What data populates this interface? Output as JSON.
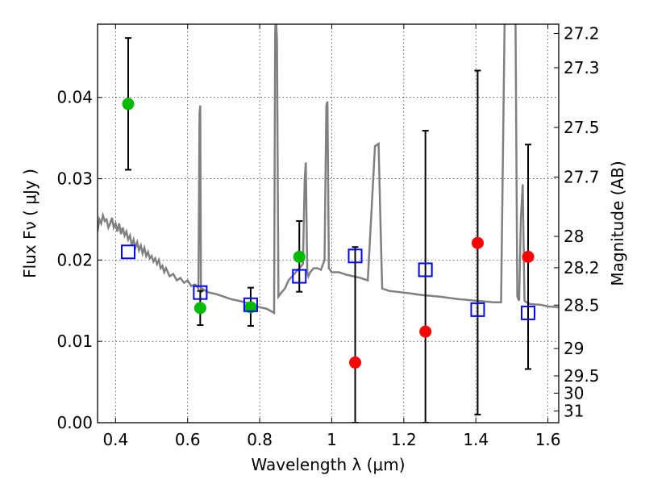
{
  "chart_data": {
    "type": "scatter",
    "xlabel": "Wavelength  λ (μm)",
    "ylabel": "Flux  Fν  ( μJy )",
    "y2label": "Magnitude (AB)",
    "xlim": [
      0.35,
      1.63
    ],
    "ylim": [
      0.0,
      0.049
    ],
    "grid": true,
    "x_ticks": [
      {
        "v": 0.4,
        "label": "0.4"
      },
      {
        "v": 0.6,
        "label": "0.6"
      },
      {
        "v": 0.8,
        "label": "0.8"
      },
      {
        "v": 1.0,
        "label": "1"
      },
      {
        "v": 1.2,
        "label": "1.2"
      },
      {
        "v": 1.4,
        "label": "1.4"
      },
      {
        "v": 1.6,
        "label": "1.6"
      }
    ],
    "y_ticks": [
      {
        "v": 0.0,
        "label": "0.00"
      },
      {
        "v": 0.01,
        "label": "0.01"
      },
      {
        "v": 0.02,
        "label": "0.02"
      },
      {
        "v": 0.03,
        "label": "0.03"
      },
      {
        "v": 0.04,
        "label": "0.04"
      }
    ],
    "y2_ticks": [
      {
        "v": 27.2,
        "label": "27.2"
      },
      {
        "v": 27.3,
        "label": "27.3"
      },
      {
        "v": 27.5,
        "label": "27.5"
      },
      {
        "v": 27.7,
        "label": "27.7"
      },
      {
        "v": 28.0,
        "label": "28"
      },
      {
        "v": 28.2,
        "label": "28.2"
      },
      {
        "v": 28.5,
        "label": "28.5"
      },
      {
        "v": 29.0,
        "label": "29"
      },
      {
        "v": 29.5,
        "label": "29.5"
      },
      {
        "v": 30.0,
        "label": "30"
      },
      {
        "v": 31.0,
        "label": "31"
      }
    ],
    "model_spectrum": {
      "color": "#808080",
      "x": [
        0.35,
        0.355,
        0.36,
        0.365,
        0.37,
        0.375,
        0.38,
        0.385,
        0.39,
        0.395,
        0.4,
        0.405,
        0.41,
        0.415,
        0.42,
        0.425,
        0.43,
        0.435,
        0.44,
        0.445,
        0.45,
        0.455,
        0.46,
        0.465,
        0.47,
        0.475,
        0.48,
        0.485,
        0.49,
        0.495,
        0.5,
        0.505,
        0.51,
        0.515,
        0.52,
        0.525,
        0.53,
        0.535,
        0.54,
        0.55,
        0.56,
        0.57,
        0.58,
        0.59,
        0.6,
        0.61,
        0.62,
        0.625,
        0.63,
        0.633,
        0.635,
        0.637,
        0.64,
        0.65,
        0.66,
        0.68,
        0.7,
        0.72,
        0.74,
        0.76,
        0.78,
        0.8,
        0.82,
        0.84,
        0.843,
        0.845,
        0.848,
        0.852,
        0.86,
        0.87,
        0.88,
        0.89,
        0.9,
        0.91,
        0.92,
        0.925,
        0.928,
        0.932,
        0.935,
        0.94,
        0.95,
        0.96,
        0.97,
        0.98,
        0.985,
        0.988,
        0.992,
        1.0,
        1.02,
        1.04,
        1.06,
        1.08,
        1.1,
        1.12,
        1.13,
        1.135,
        1.14,
        1.16,
        1.2,
        1.25,
        1.3,
        1.35,
        1.4,
        1.45,
        1.47,
        1.48,
        1.49,
        1.5,
        1.505,
        1.51,
        1.515,
        1.52,
        1.525,
        1.53,
        1.535,
        1.54,
        1.55,
        1.58,
        1.6,
        1.63
      ],
      "y": [
        0.0235,
        0.025,
        0.0245,
        0.0255,
        0.0248,
        0.025,
        0.024,
        0.0245,
        0.0252,
        0.024,
        0.0245,
        0.0235,
        0.0245,
        0.0232,
        0.024,
        0.023,
        0.0235,
        0.0225,
        0.023,
        0.0218,
        0.0225,
        0.0215,
        0.0222,
        0.0212,
        0.0218,
        0.0208,
        0.0215,
        0.0205,
        0.021,
        0.0202,
        0.0205,
        0.0198,
        0.0202,
        0.0195,
        0.02,
        0.019,
        0.0193,
        0.0185,
        0.019,
        0.018,
        0.0183,
        0.0175,
        0.0178,
        0.0172,
        0.0175,
        0.0168,
        0.017,
        0.0168,
        0.0165,
        0.038,
        0.039,
        0.016,
        0.0165,
        0.0162,
        0.016,
        0.0158,
        0.0155,
        0.0152,
        0.015,
        0.0148,
        0.0145,
        0.0142,
        0.014,
        0.0135,
        0.048,
        0.05,
        0.047,
        0.0155,
        0.016,
        0.0165,
        0.0175,
        0.018,
        0.0185,
        0.019,
        0.0195,
        0.03,
        0.032,
        0.0185,
        0.018,
        0.0185,
        0.019,
        0.019,
        0.0188,
        0.02,
        0.039,
        0.0395,
        0.019,
        0.0185,
        0.0185,
        0.0182,
        0.018,
        0.0178,
        0.0175,
        0.034,
        0.0343,
        0.025,
        0.0165,
        0.0162,
        0.016,
        0.0157,
        0.0155,
        0.0152,
        0.015,
        0.0148,
        0.0148,
        0.05,
        0.05,
        0.05,
        0.05,
        0.05,
        0.0155,
        0.015,
        0.0252,
        0.0293,
        0.015,
        0.0148,
        0.0146,
        0.0145,
        0.0143,
        0.0142
      ]
    },
    "series": [
      {
        "color": "#00bb00",
        "marker": "circle",
        "points": [
          {
            "x": 0.435,
            "y": 0.0392,
            "err_lo": 0.0311,
            "err_hi": 0.0473
          },
          {
            "x": 0.635,
            "y": 0.0141,
            "err_lo": 0.012,
            "err_hi": 0.0162
          },
          {
            "x": 0.775,
            "y": 0.0142,
            "err_lo": 0.0119,
            "err_hi": 0.0166
          },
          {
            "x": 0.91,
            "y": 0.0204,
            "err_lo": 0.0161,
            "err_hi": 0.0248
          }
        ]
      },
      {
        "color": "#ff0000",
        "marker": "circle",
        "points": [
          {
            "x": 1.065,
            "y": 0.0074,
            "err_lo": 0.0,
            "err_hi": 0.0216
          },
          {
            "x": 1.26,
            "y": 0.0112,
            "err_lo": 0.0,
            "err_hi": 0.0359
          },
          {
            "x": 1.405,
            "y": 0.0221,
            "err_lo": 0.001,
            "err_hi": 0.0433
          },
          {
            "x": 1.545,
            "y": 0.0204,
            "err_lo": 0.0066,
            "err_hi": 0.0342
          }
        ]
      },
      {
        "color": "#0000ff",
        "marker": "square-open",
        "points": [
          {
            "x": 0.435,
            "y": 0.021
          },
          {
            "x": 0.635,
            "y": 0.016
          },
          {
            "x": 0.775,
            "y": 0.0145
          },
          {
            "x": 0.91,
            "y": 0.018
          },
          {
            "x": 1.065,
            "y": 0.0205
          },
          {
            "x": 1.26,
            "y": 0.0188
          },
          {
            "x": 1.405,
            "y": 0.0139
          },
          {
            "x": 1.545,
            "y": 0.0135
          }
        ]
      }
    ]
  }
}
